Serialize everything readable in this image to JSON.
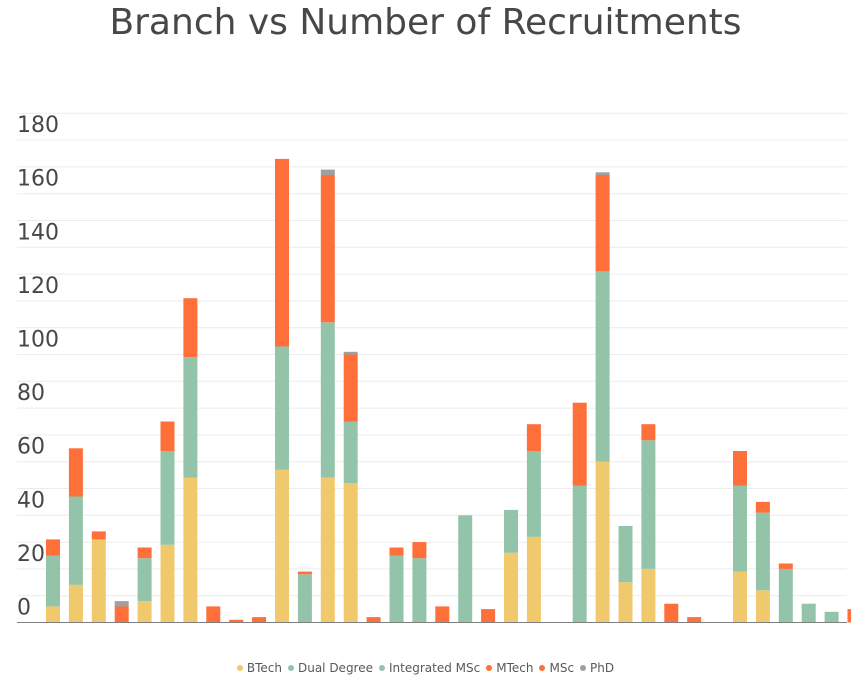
{
  "chart_data": {
    "type": "bar",
    "stacked": true,
    "title": "Branch vs Number of Recruitments",
    "xlabel": "",
    "ylabel": "",
    "ylim": [
      0,
      190
    ],
    "yticks": [
      0,
      20,
      40,
      60,
      80,
      100,
      120,
      140,
      160,
      180
    ],
    "grid": true,
    "legend_position": "bottom",
    "series": [
      {
        "name": "BTech",
        "color": "#f0c96c",
        "values": [
          6,
          14,
          31,
          0,
          8,
          29,
          54,
          0,
          0,
          0,
          57,
          0,
          54,
          52,
          0,
          0,
          0,
          0,
          0,
          0,
          26,
          32,
          0,
          0,
          60,
          15,
          20,
          0,
          0,
          0,
          19,
          12,
          0,
          0,
          0,
          0,
          0
        ]
      },
      {
        "name": "Dual Degree",
        "color": "#93c4a9",
        "values": [
          19,
          33,
          0,
          0,
          16,
          35,
          45,
          0,
          0,
          0,
          46,
          18,
          58,
          23,
          0,
          25,
          24,
          0,
          40,
          0,
          16,
          32,
          0,
          0,
          71,
          21,
          48,
          0,
          0,
          0,
          32,
          29,
          20,
          7,
          4,
          0,
          0
        ]
      },
      {
        "name": "Integrated MSc",
        "color": "#93c4a9",
        "values": [
          0,
          0,
          0,
          0,
          0,
          0,
          0,
          0,
          0,
          0,
          0,
          0,
          0,
          0,
          0,
          0,
          0,
          0,
          0,
          0,
          0,
          0,
          0,
          51,
          0,
          0,
          0,
          0,
          0,
          0,
          0,
          0,
          0,
          0,
          0,
          0,
          0
        ]
      },
      {
        "name": "MTech",
        "color": "#ff6f3a",
        "values": [
          6,
          18,
          3,
          6,
          4,
          11,
          22,
          6,
          1,
          2,
          70,
          1,
          55,
          25,
          2,
          3,
          6,
          6,
          0,
          5,
          0,
          10,
          0,
          31,
          36,
          0,
          6,
          7,
          2,
          0,
          13,
          4,
          2,
          0,
          0,
          5,
          2
        ]
      },
      {
        "name": "MSc",
        "color": "#ff6f3a",
        "values": [
          0,
          0,
          0,
          0,
          0,
          0,
          0,
          0,
          0,
          0,
          0,
          0,
          0,
          0,
          0,
          0,
          0,
          0,
          0,
          0,
          0,
          0,
          0,
          0,
          0,
          0,
          0,
          0,
          0,
          0,
          0,
          0,
          0,
          0,
          0,
          0,
          0
        ]
      },
      {
        "name": "PhD",
        "color": "#a0a0a0",
        "values": [
          0,
          0,
          0,
          2,
          0,
          0,
          0,
          0,
          0,
          0,
          0,
          0,
          2,
          1,
          0,
          0,
          0,
          0,
          0,
          0,
          0,
          0,
          0,
          0,
          1,
          0,
          0,
          0,
          0,
          0,
          0,
          0,
          0,
          0,
          0,
          0,
          0
        ]
      }
    ]
  }
}
